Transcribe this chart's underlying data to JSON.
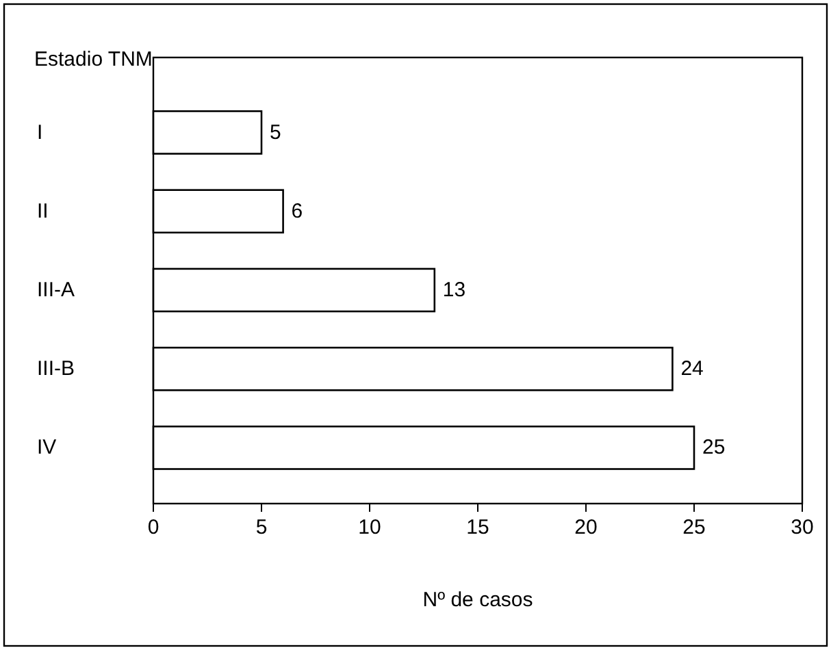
{
  "chart_data": {
    "type": "bar",
    "orientation": "horizontal",
    "ylabel": "Estadio TNM",
    "xlabel": "Nº de casos",
    "categories": [
      "I",
      "II",
      "III-A",
      "III-B",
      "IV"
    ],
    "values": [
      5,
      6,
      13,
      24,
      25
    ],
    "color": "#ffffff",
    "xlim": [
      0,
      30
    ],
    "xticks": [
      0,
      5,
      10,
      15,
      20,
      25,
      30
    ],
    "grid": false,
    "data_labels": true
  }
}
